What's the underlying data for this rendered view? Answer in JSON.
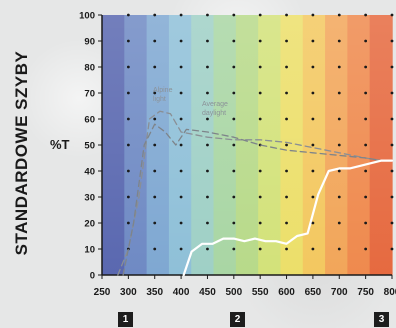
{
  "side_title": "STANDARDOWE SZYBY",
  "chart_data": {
    "type": "line",
    "ylabel": "%T",
    "xlabel": "",
    "x_ticks": [
      250,
      300,
      350,
      400,
      450,
      500,
      550,
      600,
      650,
      700,
      750,
      800
    ],
    "y_ticks": [
      0,
      10,
      20,
      30,
      40,
      50,
      60,
      70,
      80,
      90,
      100
    ],
    "xlim": [
      250,
      800
    ],
    "ylim": [
      0,
      100
    ],
    "grid": "dots",
    "series": [
      {
        "name": "Alpine light",
        "style": "dashed",
        "color": "#8a8f95",
        "x": [
          280,
          300,
          320,
          340,
          360,
          380,
          400,
          450,
          500,
          550,
          600,
          650,
          700,
          750,
          780
        ],
        "y": [
          0,
          10,
          30,
          60,
          63,
          62,
          55,
          53,
          52,
          52,
          51,
          49,
          47,
          45,
          44
        ]
      },
      {
        "name": "Average daylight",
        "style": "dashed",
        "color": "#7e848a",
        "x": [
          290,
          310,
          330,
          350,
          370,
          390,
          410,
          450,
          500,
          550,
          600,
          650,
          700,
          750,
          780
        ],
        "y": [
          0,
          20,
          50,
          58,
          55,
          50,
          56,
          55,
          53,
          50,
          48,
          47,
          46,
          45,
          44
        ]
      },
      {
        "name": "",
        "style": "solid",
        "color": "#ffffff",
        "x": [
          405,
          420,
          440,
          460,
          480,
          500,
          520,
          540,
          560,
          580,
          600,
          620,
          640,
          660,
          680,
          700,
          720,
          740,
          760,
          780,
          800
        ],
        "y": [
          0,
          9,
          12,
          12,
          14,
          14,
          13,
          14,
          13,
          13,
          12,
          15,
          16,
          31,
          40,
          41,
          41,
          42,
          43,
          44,
          44
        ]
      }
    ],
    "annotations": [
      "Alpine light",
      "Average daylight"
    ],
    "markers": [
      "1",
      "2",
      "3"
    ],
    "background_spectrum": [
      "#5a68b0",
      "#6f8ac4",
      "#7fa8d2",
      "#8fc0d8",
      "#9fd0c6",
      "#a9d6a4",
      "#b8da8a",
      "#d3e27a",
      "#ecdf6a",
      "#f3c860",
      "#f2a65a",
      "#ef8a4e",
      "#e66a40"
    ]
  }
}
